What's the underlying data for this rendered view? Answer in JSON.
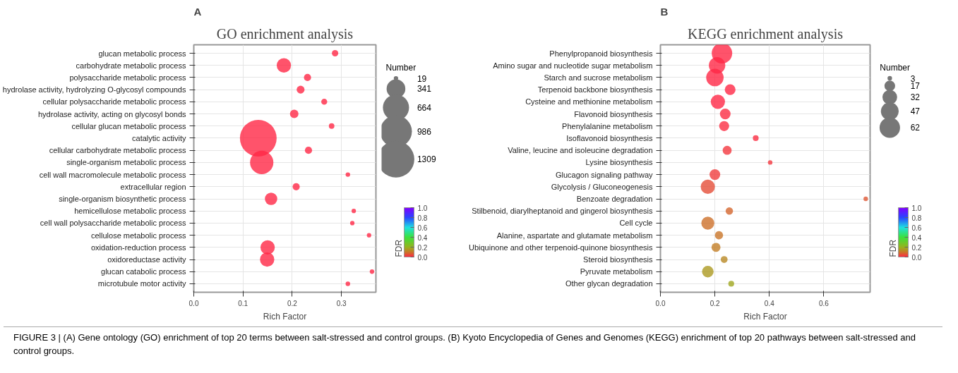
{
  "chart_data": [
    {
      "type": "bubble",
      "orientation": "horizontal",
      "title": "GO enrichment analysis",
      "xlabel": "Rich Factor",
      "legend_title": "Number",
      "clabel": "FDR",
      "annotations": [
        "A"
      ],
      "categories": [
        "glucan metabolic process",
        "carbohydrate metabolic process",
        "polysaccharide metabolic process",
        "hydrolase activity, hydrolyzing O-glycosyl compounds",
        "cellular polysaccharide metabolic process",
        "hydrolase activity, acting on glycosyl bonds",
        "cellular glucan metabolic process",
        "catalytic activity",
        "cellular carbohydrate metabolic process",
        "single-organism metabolic process",
        "cell wall macromolecule metabolic process",
        "extracellular region",
        "single-organism biosynthetic process",
        "hemicellulose metabolic process",
        "cell wall polysaccharide metabolic process",
        "cellulose metabolic process",
        "oxidation-reduction process",
        "oxidoreductase activity",
        "glucan catabolic process",
        "microtubule motor activity"
      ],
      "values": [
        0.287,
        0.183,
        0.231,
        0.217,
        0.265,
        0.204,
        0.28,
        0.131,
        0.233,
        0.138,
        0.313,
        0.208,
        0.157,
        0.325,
        0.322,
        0.356,
        0.15,
        0.149,
        0.362,
        0.313
      ],
      "sizes": [
        40,
        200,
        50,
        60,
        35,
        70,
        30,
        1309,
        50,
        530,
        20,
        50,
        150,
        19,
        19,
        19,
        200,
        200,
        19,
        20
      ],
      "cvalues": [
        0,
        0,
        0,
        0,
        0,
        0,
        0,
        0,
        0,
        0,
        0,
        0,
        0,
        0,
        0,
        0,
        0,
        0,
        0,
        0
      ],
      "size_legend": [
        19,
        341,
        664,
        986,
        1309
      ],
      "xlim": [
        0,
        0.37
      ],
      "xticks": [
        {
          "value": 0,
          "label": "0.0"
        },
        {
          "value": 0.1,
          "label": "0.1"
        },
        {
          "value": 0.2,
          "label": "0.2"
        },
        {
          "value": 0.3,
          "label": "0.3"
        }
      ],
      "clim": [
        0,
        1
      ],
      "cticks": [
        {
          "value": 0,
          "label": "0.0"
        },
        {
          "value": 0.2,
          "label": "0.2"
        },
        {
          "value": 0.4,
          "label": "0.4"
        },
        {
          "value": 0.6,
          "label": "0.6"
        },
        {
          "value": 0.8,
          "label": "0.8"
        },
        {
          "value": 1,
          "label": "1.0"
        }
      ],
      "grid": true
    },
    {
      "type": "bubble",
      "orientation": "horizontal",
      "title": "KEGG enrichment analysis",
      "xlabel": "Rich Factor",
      "legend_title": "Number",
      "clabel": "FDR",
      "annotations": [
        "B",
        "FIGURE 3 | (A) Gene ontology (GO) enrichment of top 20 terms between salt-stressed and control groups. (B) Kyoto Encyclopedia of Genes and Genomes (KEGG) enrichment of top 20 pathways between salt-stressed and control groups."
      ],
      "categories": [
        "Phenylpropanoid biosynthesis",
        "Amino sugar and nucleotide sugar metabolism",
        "Starch and sucrose metabolism",
        "Terpenoid backbone biosynthesis",
        "Cysteine and methionine metabolism",
        "Flavonoid biosynthesis",
        "Phenylalanine metabolism",
        "Isoflavonoid biosynthesis",
        "Valine, leucine and isoleucine degradation",
        "Lysine biosynthesis",
        "Glucagon signaling pathway",
        "Glycolysis / Gluconeogenesis",
        "Benzoate degradation",
        "Stilbenoid, diarylheptanoid and gingerol biosynthesis",
        "Cell cycle",
        "Alanine, aspartate and glutamate metabolism",
        "Ubiquinone and other terpenoid-quinone biosynthesis",
        "Steroid biosynthesis",
        "Pyruvate metabolism",
        "Other glycan degradation"
      ],
      "values": [
        0.226,
        0.208,
        0.2,
        0.256,
        0.211,
        0.238,
        0.234,
        0.35,
        0.245,
        0.403,
        0.2,
        0.174,
        0.754,
        0.253,
        0.174,
        0.215,
        0.204,
        0.234,
        0.174,
        0.26
      ],
      "sizes": [
        62,
        40,
        45,
        17,
        30,
        17,
        15,
        5,
        12,
        3,
        17,
        30,
        3,
        8,
        25,
        10,
        12,
        7,
        20,
        5
      ],
      "cvalues": [
        0,
        0,
        0,
        0,
        0,
        0.01,
        0.01,
        0.01,
        0.02,
        0.02,
        0.03,
        0.05,
        0.06,
        0.08,
        0.09,
        0.1,
        0.11,
        0.13,
        0.16,
        0.18
      ],
      "size_legend": [
        3,
        17,
        32,
        47,
        62
      ],
      "xlim": [
        0,
        0.77
      ],
      "xticks": [
        {
          "value": 0,
          "label": "0.0"
        },
        {
          "value": 0.2,
          "label": "0.2"
        },
        {
          "value": 0.4,
          "label": "0.4"
        },
        {
          "value": 0.6,
          "label": "0.6"
        }
      ],
      "clim": [
        0,
        1
      ],
      "cticks": [
        {
          "value": 0,
          "label": "0.0"
        },
        {
          "value": 0.2,
          "label": "0.2"
        },
        {
          "value": 0.4,
          "label": "0.4"
        },
        {
          "value": 0.6,
          "label": "0.6"
        },
        {
          "value": 0.8,
          "label": "0.8"
        },
        {
          "value": 1,
          "label": "1.0"
        }
      ],
      "grid": true
    }
  ]
}
